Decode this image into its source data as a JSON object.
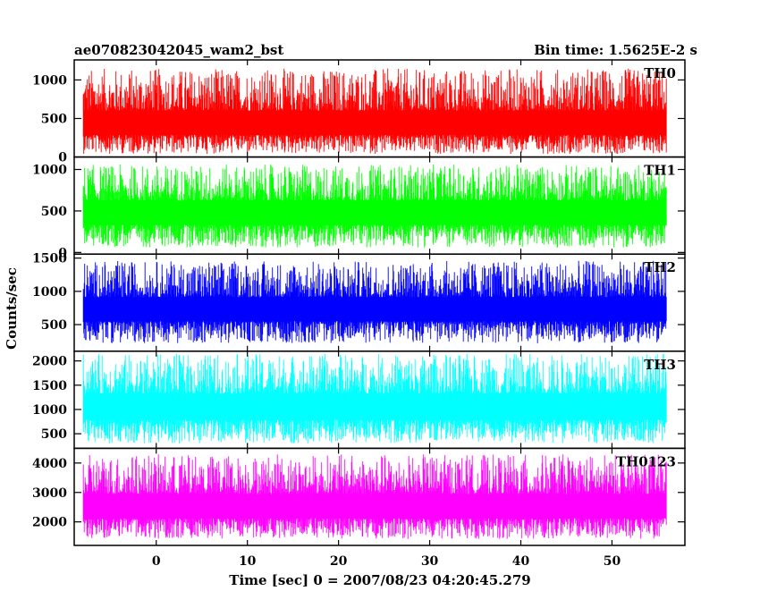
{
  "chart_data": {
    "type": "line",
    "title": "ae070823042045_wam2_bst",
    "subtitle": "Bin time: 1.5625E-2 s",
    "xlabel": "Time [sec] 0 = 2007/08/23 04:20:45.279",
    "ylabel": "Counts/sec",
    "xlim": [
      -9,
      58
    ],
    "x_ticks": [
      0,
      10,
      20,
      30,
      40,
      50
    ],
    "x_tick_labels": [
      "0",
      "10",
      "20",
      "30",
      "40",
      "50"
    ],
    "x_data_range": [
      -8,
      56
    ],
    "grid": false,
    "panels": [
      {
        "name": "TH0",
        "color": "#ff0000",
        "ylim": [
          0,
          1260
        ],
        "y_ticks": [
          0,
          500,
          1000
        ],
        "y_tick_labels": [
          "0",
          "500",
          "1000"
        ],
        "mean": 420,
        "noise_low": 40,
        "noise_high": 1150
      },
      {
        "name": "TH1",
        "color": "#00ff00",
        "ylim": [
          -20,
          1150
        ],
        "y_ticks": [
          0,
          500,
          1000
        ],
        "y_tick_labels": [
          "0",
          "500",
          "1000"
        ],
        "mean": 480,
        "noise_low": 60,
        "noise_high": 1060
      },
      {
        "name": "TH2",
        "color": "#0000ff",
        "ylim": [
          100,
          1560
        ],
        "y_ticks": [
          500,
          1000,
          1500
        ],
        "y_tick_labels": [
          "500",
          "1000",
          "1500"
        ],
        "mean": 730,
        "noise_low": 220,
        "noise_high": 1460
      },
      {
        "name": "TH3",
        "color": "#00ffff",
        "ylim": [
          200,
          2200
        ],
        "y_ticks": [
          500,
          1000,
          1500,
          2000
        ],
        "y_tick_labels": [
          "500",
          "1000",
          "1500",
          "2000"
        ],
        "mean": 1050,
        "noise_low": 300,
        "noise_high": 2150
      },
      {
        "name": "TH0123",
        "color": "#ff00ff",
        "ylim": [
          1200,
          4500
        ],
        "y_ticks": [
          2000,
          3000,
          4000
        ],
        "y_tick_labels": [
          "2000",
          "3000",
          "4000"
        ],
        "mean": 2500,
        "noise_low": 1420,
        "noise_high": 4300
      }
    ]
  }
}
